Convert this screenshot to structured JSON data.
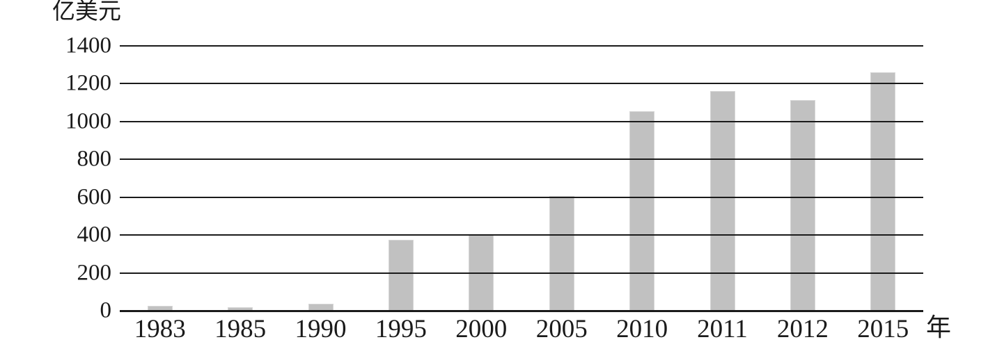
{
  "page": {
    "background_color": "#ffffff",
    "text_color": "#1a1a1a"
  },
  "chart_data": {
    "type": "bar",
    "title": "",
    "y_axis_unit_label": "亿美元",
    "x_axis_unit_label": "年",
    "categories": [
      "1983",
      "1985",
      "1990",
      "1995",
      "2000",
      "2005",
      "2010",
      "2011",
      "2012",
      "2015"
    ],
    "values": [
      25,
      20,
      35,
      375,
      405,
      605,
      1055,
      1160,
      1115,
      1260
    ],
    "y_ticks": [
      0,
      200,
      400,
      600,
      800,
      1000,
      1200,
      1400
    ],
    "ylim": [
      0,
      1400
    ],
    "grid": "horizontal-only",
    "legend": "none",
    "bar_color": "#c1c1c1",
    "bar_border_color": "#d6d6d6",
    "axis_line_color": "#1a1a1a",
    "baseline_thicker": true,
    "gridlines_drawn_over_bars": true
  }
}
